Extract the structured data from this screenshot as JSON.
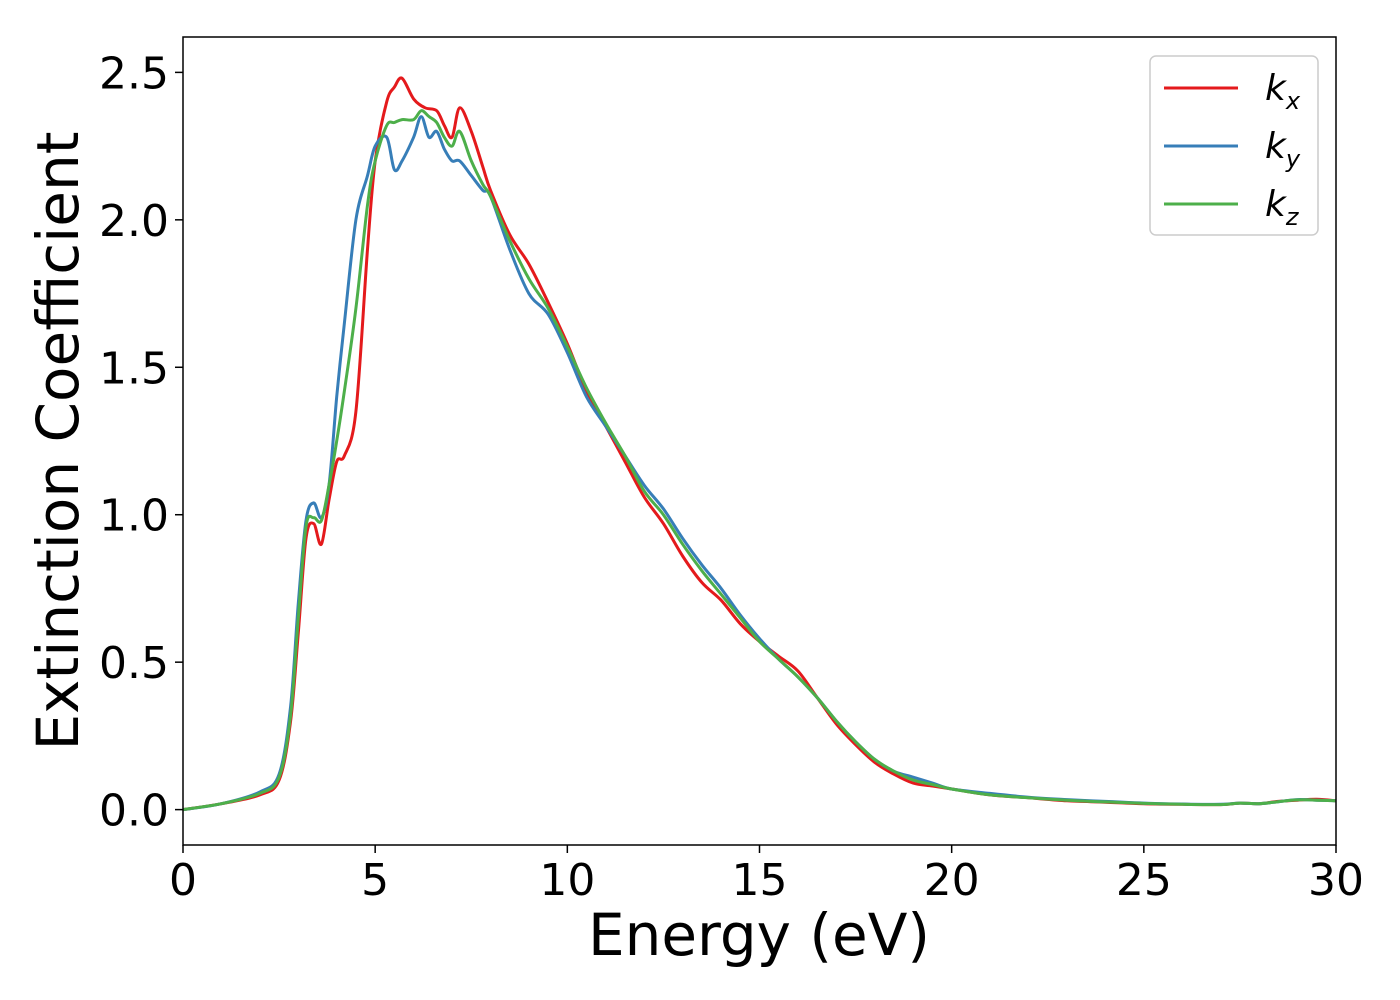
{
  "chart_data": {
    "type": "line",
    "xlabel": "Energy (eV)",
    "ylabel": "Extinction Coefficient",
    "xlim": [
      0,
      30
    ],
    "ylim": [
      -0.12,
      2.62
    ],
    "xticks": [
      0,
      5,
      10,
      15,
      20,
      25,
      30
    ],
    "xtick_labels": [
      "0",
      "5",
      "10",
      "15",
      "20",
      "25",
      "30"
    ],
    "yticks": [
      0.0,
      0.5,
      1.0,
      1.5,
      2.0,
      2.5
    ],
    "ytick_labels": [
      "0.0",
      "0.5",
      "1.0",
      "1.5",
      "2.0",
      "2.5"
    ],
    "grid": false,
    "legend_position": "top-right",
    "series": [
      {
        "name": "k",
        "subscript": "x",
        "color": "#e41a1c",
        "x": [
          0,
          1,
          2,
          2.5,
          2.8,
          3.0,
          3.2,
          3.4,
          3.6,
          3.8,
          4.0,
          4.2,
          4.5,
          4.8,
          5.0,
          5.3,
          5.5,
          5.7,
          6.0,
          6.3,
          6.6,
          6.8,
          7.0,
          7.2,
          7.5,
          7.8,
          8.0,
          8.5,
          9.0,
          9.5,
          10,
          10.5,
          11,
          11.5,
          12,
          12.5,
          13,
          13.5,
          14,
          14.5,
          15,
          15.5,
          16,
          16.5,
          17,
          17.5,
          18,
          18.5,
          19,
          19.5,
          20,
          21,
          22,
          23,
          24,
          25,
          26,
          27,
          27.5,
          28,
          28.5,
          29,
          29.5,
          30
        ],
        "y": [
          0.0,
          0.02,
          0.05,
          0.1,
          0.3,
          0.6,
          0.92,
          0.97,
          0.9,
          1.05,
          1.18,
          1.2,
          1.35,
          1.9,
          2.2,
          2.4,
          2.45,
          2.48,
          2.41,
          2.38,
          2.37,
          2.32,
          2.28,
          2.38,
          2.3,
          2.18,
          2.1,
          1.95,
          1.85,
          1.72,
          1.58,
          1.42,
          1.3,
          1.18,
          1.06,
          0.97,
          0.86,
          0.77,
          0.71,
          0.63,
          0.57,
          0.52,
          0.47,
          0.38,
          0.29,
          0.22,
          0.16,
          0.12,
          0.09,
          0.08,
          0.07,
          0.05,
          0.04,
          0.03,
          0.025,
          0.02,
          0.018,
          0.017,
          0.022,
          0.02,
          0.028,
          0.032,
          0.035,
          0.03
        ]
      },
      {
        "name": "k",
        "subscript": "y",
        "color": "#377eb8",
        "x": [
          0,
          1,
          2,
          2.5,
          2.8,
          3.0,
          3.2,
          3.4,
          3.6,
          3.8,
          4.0,
          4.2,
          4.5,
          4.8,
          5.0,
          5.3,
          5.5,
          5.7,
          6.0,
          6.2,
          6.4,
          6.6,
          6.8,
          7.0,
          7.2,
          7.5,
          7.8,
          8.0,
          8.5,
          9.0,
          9.5,
          10,
          10.5,
          11,
          11.5,
          12,
          12.5,
          13,
          13.5,
          14,
          14.5,
          15,
          15.5,
          16,
          16.5,
          17,
          17.5,
          18,
          18.5,
          19,
          19.5,
          20,
          21,
          22,
          23,
          24,
          25,
          26,
          27,
          27.5,
          28,
          28.5,
          29,
          29.5,
          30
        ],
        "y": [
          0.0,
          0.02,
          0.06,
          0.12,
          0.35,
          0.7,
          0.98,
          1.04,
          0.99,
          1.1,
          1.4,
          1.65,
          2.0,
          2.15,
          2.25,
          2.28,
          2.17,
          2.2,
          2.28,
          2.35,
          2.28,
          2.3,
          2.24,
          2.2,
          2.2,
          2.15,
          2.1,
          2.08,
          1.9,
          1.75,
          1.68,
          1.55,
          1.4,
          1.3,
          1.2,
          1.1,
          1.02,
          0.92,
          0.83,
          0.75,
          0.66,
          0.58,
          0.51,
          0.45,
          0.38,
          0.3,
          0.23,
          0.17,
          0.13,
          0.11,
          0.09,
          0.07,
          0.055,
          0.042,
          0.034,
          0.028,
          0.022,
          0.019,
          0.018,
          0.022,
          0.02,
          0.027,
          0.034,
          0.032,
          0.03
        ]
      },
      {
        "name": "k",
        "subscript": "z",
        "color": "#4daf4a",
        "x": [
          0,
          1,
          2,
          2.5,
          2.8,
          3.0,
          3.2,
          3.4,
          3.6,
          3.8,
          4.0,
          4.2,
          4.5,
          4.8,
          5.0,
          5.3,
          5.5,
          5.7,
          6.0,
          6.2,
          6.4,
          6.6,
          6.8,
          7.0,
          7.2,
          7.5,
          7.8,
          8.0,
          8.5,
          9.0,
          9.5,
          10,
          10.5,
          11,
          11.5,
          12,
          12.5,
          13,
          13.5,
          14,
          14.5,
          15,
          15.5,
          16,
          16.5,
          17,
          17.5,
          18,
          18.5,
          19,
          19.5,
          20,
          21,
          22,
          23,
          24,
          25,
          26,
          27,
          27.5,
          28,
          28.5,
          29,
          29.5,
          30
        ],
        "y": [
          0.0,
          0.02,
          0.055,
          0.11,
          0.32,
          0.65,
          0.96,
          0.99,
          0.98,
          1.1,
          1.25,
          1.42,
          1.7,
          2.05,
          2.2,
          2.32,
          2.33,
          2.34,
          2.34,
          2.37,
          2.35,
          2.33,
          2.28,
          2.25,
          2.3,
          2.2,
          2.12,
          2.08,
          1.93,
          1.8,
          1.7,
          1.57,
          1.43,
          1.31,
          1.2,
          1.08,
          1.0,
          0.9,
          0.81,
          0.73,
          0.65,
          0.57,
          0.51,
          0.45,
          0.38,
          0.3,
          0.23,
          0.17,
          0.13,
          0.1,
          0.085,
          0.07,
          0.05,
          0.04,
          0.032,
          0.026,
          0.021,
          0.018,
          0.017,
          0.022,
          0.02,
          0.027,
          0.033,
          0.032,
          0.03
        ]
      }
    ]
  }
}
